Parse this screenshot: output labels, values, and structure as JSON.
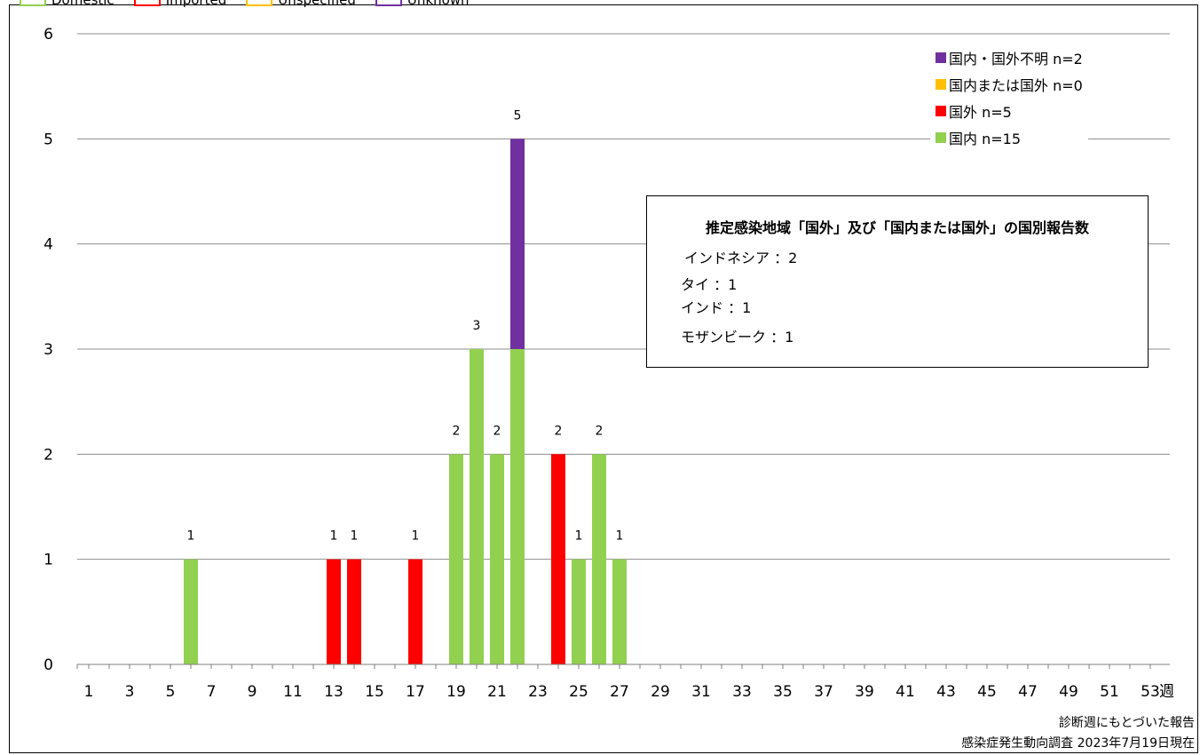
{
  "top_legend": [
    {
      "label": "Domestic",
      "color": "#92d050"
    },
    {
      "label": "Imported",
      "color": "#ff0000"
    },
    {
      "label": "Unspecified",
      "color": "#ffc000"
    },
    {
      "label": "Unknown",
      "color": "#7030a0"
    }
  ],
  "legend": [
    {
      "label": "国内・国外不明 n=2",
      "color": "#7030a0"
    },
    {
      "label": "国内または国外 n=0",
      "color": "#ffc000"
    },
    {
      "label": "国外 n=5",
      "color": "#ff0000"
    },
    {
      "label": "国内 n=15",
      "color": "#92d050"
    }
  ],
  "infobox": {
    "title": "推定感染地域「国外」及び「国内または国外」の国別報告数",
    "lines": [
      "インドネシア ：2",
      "タイ ：1",
      "インド ：1",
      "モザンビーク ：1"
    ]
  },
  "footer": {
    "line1": "診断週にもとづいた報告",
    "line2": "感染症発生動向調査 2023年7月19日現在"
  },
  "chart_data": {
    "type": "bar",
    "stacked": true,
    "xlabel": "週",
    "ylabel": "",
    "ylim": [
      0,
      6
    ],
    "yticks": [
      0,
      1,
      2,
      3,
      4,
      5,
      6
    ],
    "x_range": [
      1,
      53
    ],
    "xtick_labels": [
      "1",
      "3",
      "5",
      "7",
      "9",
      "11",
      "13",
      "15",
      "17",
      "19",
      "21",
      "23",
      "25",
      "27",
      "29",
      "31",
      "33",
      "35",
      "37",
      "39",
      "41",
      "43",
      "45",
      "47",
      "49",
      "51",
      "53"
    ],
    "grid": true,
    "legend_position": "top-right",
    "series": [
      {
        "name": "国内 n=15",
        "color": "#92d050",
        "points": [
          [
            6,
            1
          ],
          [
            19,
            2
          ],
          [
            20,
            3
          ],
          [
            21,
            2
          ],
          [
            22,
            3
          ],
          [
            25,
            1
          ],
          [
            26,
            2
          ],
          [
            27,
            1
          ]
        ]
      },
      {
        "name": "国外 n=5",
        "color": "#ff0000",
        "points": [
          [
            13,
            1
          ],
          [
            14,
            1
          ],
          [
            17,
            1
          ],
          [
            24,
            2
          ]
        ]
      },
      {
        "name": "国内または国外 n=0",
        "color": "#ffc000",
        "points": []
      },
      {
        "name": "国内・国外不明 n=2",
        "color": "#7030a0",
        "points": [
          [
            22,
            2
          ]
        ]
      }
    ],
    "totals": [
      [
        6,
        1
      ],
      [
        13,
        1
      ],
      [
        14,
        1
      ],
      [
        17,
        1
      ],
      [
        19,
        2
      ],
      [
        20,
        3
      ],
      [
        21,
        2
      ],
      [
        22,
        5
      ],
      [
        24,
        2
      ],
      [
        25,
        1
      ],
      [
        26,
        2
      ],
      [
        27,
        1
      ]
    ]
  }
}
